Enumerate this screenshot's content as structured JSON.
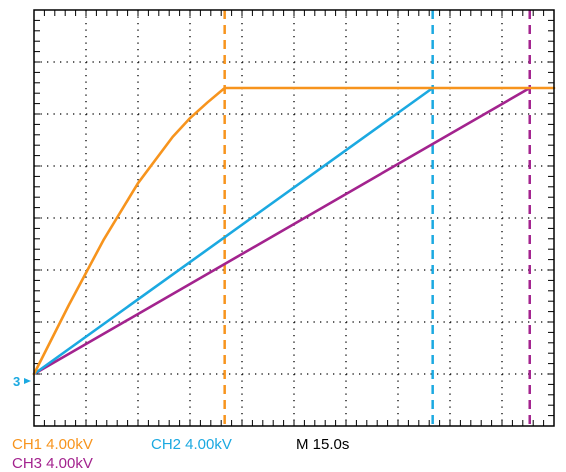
{
  "chart_data": {
    "type": "line",
    "grid": true,
    "xlim": [
      0,
      150
    ],
    "ylim": [
      -1,
      7
    ],
    "x_divisions": 10,
    "y_divisions": 8,
    "time_scale": "M  15.0s",
    "channels": [
      {
        "label": "CH1  4.00kV",
        "color": "#F7941D"
      },
      {
        "label": "CH2  4.00kV",
        "color": "#1BA9E1"
      },
      {
        "label": "CH3  4.00kV",
        "color": "#A3238E"
      }
    ],
    "ground_marker": "3",
    "series": [
      {
        "color": "#F7941D",
        "x": [
          0,
          10,
          20,
          30,
          40,
          45,
          50,
          55,
          150
        ],
        "y": [
          0,
          1.32,
          2.57,
          3.67,
          4.56,
          4.92,
          5.22,
          5.5,
          5.5
        ]
      },
      {
        "color": "#1BA9E1",
        "x": [
          0,
          115
        ],
        "y": [
          0,
          5.5
        ]
      },
      {
        "color": "#A3238E",
        "x": [
          0,
          143
        ],
        "y": [
          0,
          5.5
        ]
      }
    ],
    "cursors": [
      {
        "color": "#F7941D",
        "x": 55
      },
      {
        "color": "#1BA9E1",
        "x": 115
      },
      {
        "color": "#A3238E",
        "x": 143
      }
    ]
  }
}
